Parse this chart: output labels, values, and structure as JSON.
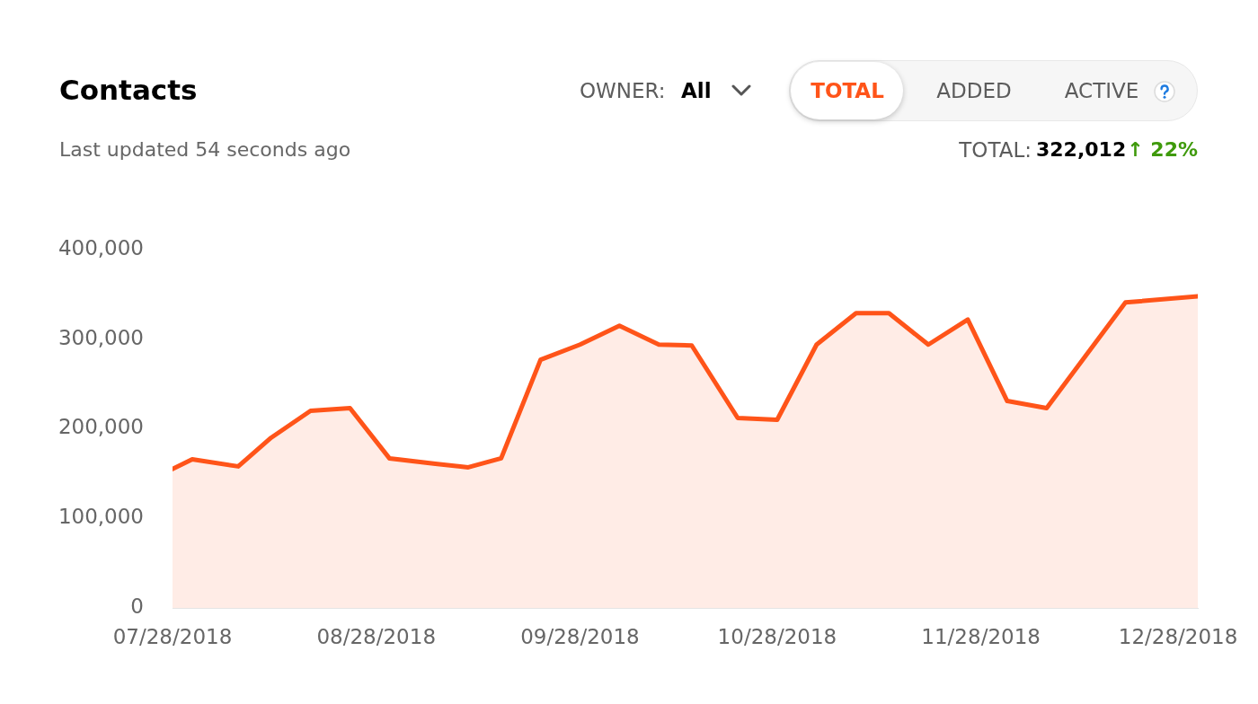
{
  "chart_data": {
    "type": "area",
    "title": "Contacts",
    "subtitle": "Last updated 54 seconds ago",
    "annotations": [
      "OWNER:",
      "All",
      "TOTAL",
      "ADDED",
      "ACTIVE",
      "TOTAL:",
      "322,012",
      "↑ 22%"
    ],
    "x": [
      "2018-07-28",
      "2018-07-31",
      "2018-08-07",
      "2018-08-12",
      "2018-08-18",
      "2018-08-24",
      "2018-08-30",
      "2018-09-06",
      "2018-09-11",
      "2018-09-16",
      "2018-09-22",
      "2018-09-28",
      "2018-10-04",
      "2018-10-10",
      "2018-10-15",
      "2018-10-22",
      "2018-10-28",
      "2018-11-03",
      "2018-11-09",
      "2018-11-14",
      "2018-11-20",
      "2018-11-26",
      "2018-12-02",
      "2018-12-08",
      "2018-12-20",
      "2018-12-31"
    ],
    "values": [
      155000,
      166000,
      158000,
      190000,
      220000,
      223000,
      167000,
      161000,
      157000,
      167000,
      277000,
      294000,
      315000,
      294000,
      293000,
      212000,
      210000,
      294000,
      329000,
      329000,
      294000,
      322000,
      231000,
      223000,
      341000,
      348000
    ],
    "color": "#ff5419",
    "xlim": [
      "2018-07-28",
      "2018-12-31"
    ],
    "xticks": [
      {
        "value": "2018-07-28",
        "label": "07/28/2018"
      },
      {
        "value": "2018-08-28",
        "label": "08/28/2018"
      },
      {
        "value": "2018-09-28",
        "label": "09/28/2018"
      },
      {
        "value": "2018-10-28",
        "label": "10/28/2018"
      },
      {
        "value": "2018-11-28",
        "label": "11/28/2018"
      },
      {
        "value": "2018-12-28",
        "label": "12/28/2018"
      }
    ],
    "ylim": [
      0,
      400000
    ],
    "yticks": [
      0,
      {
        "value": 100000,
        "label": "100,000"
      },
      {
        "value": 200000,
        "label": "200,000"
      },
      {
        "value": 300000,
        "label": "300,000"
      },
      {
        "value": 400000,
        "label": "400,000"
      }
    ],
    "grid": false,
    "legend": false,
    "marker": "none"
  }
}
